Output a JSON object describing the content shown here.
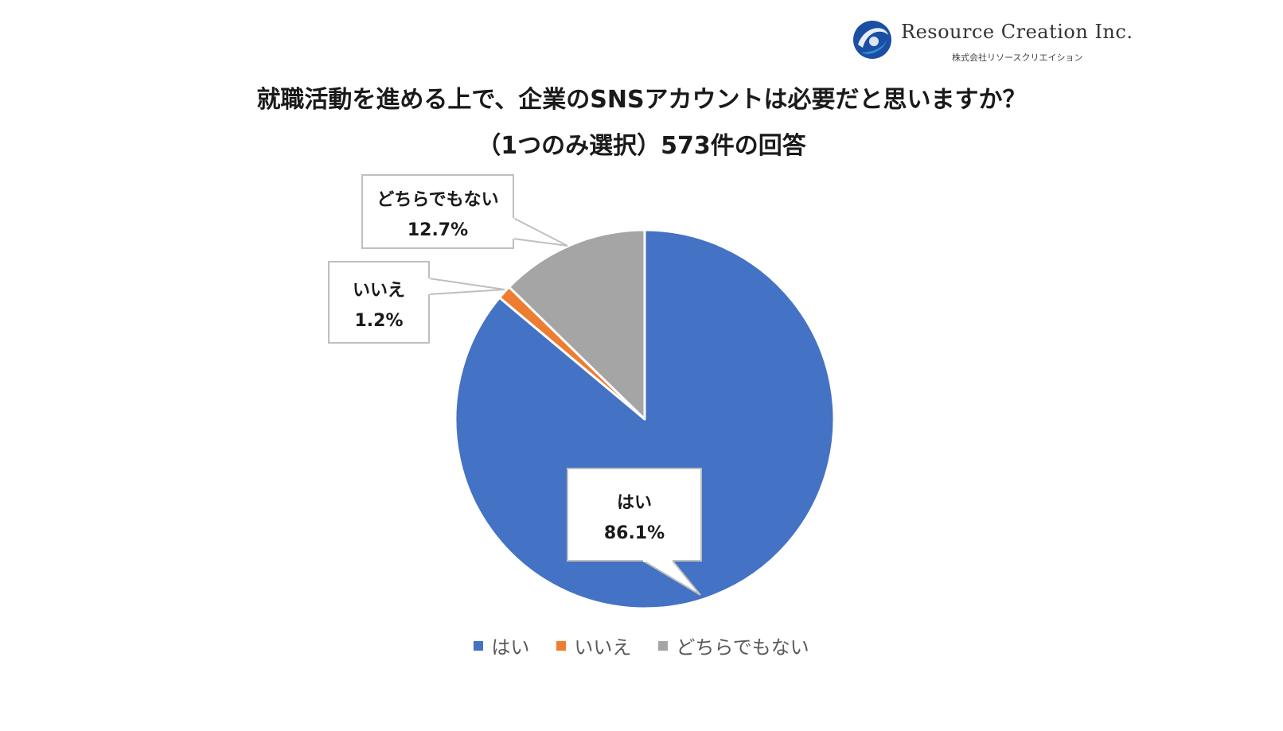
{
  "logo": {
    "name": "Resource Creation Inc.",
    "subtitle": "株式会社リソースクリエイション",
    "colors": [
      "#1a4fa3",
      "#2f8fd6"
    ]
  },
  "title": {
    "line1": "就職活動を進める上で、企業のSNSアカウントは必要だと思いますか？",
    "line2": "（1つのみ選択）573件の回答"
  },
  "chart_data": {
    "type": "pie",
    "title": "就職活動を進める上で、企業のSNSアカウントは必要だと思いますか？（1つのみ選択）573件の回答",
    "categories": [
      "はい",
      "いいえ",
      "どちらでもない"
    ],
    "values": [
      86.1,
      1.2,
      12.7
    ],
    "labels": [
      "86.1%",
      "1.2%",
      "12.7%"
    ],
    "colors": [
      "#4472c4",
      "#ed7d31",
      "#a5a5a5"
    ],
    "start_angle_deg": 0,
    "direction": "clockwise",
    "legend_position": "bottom"
  }
}
